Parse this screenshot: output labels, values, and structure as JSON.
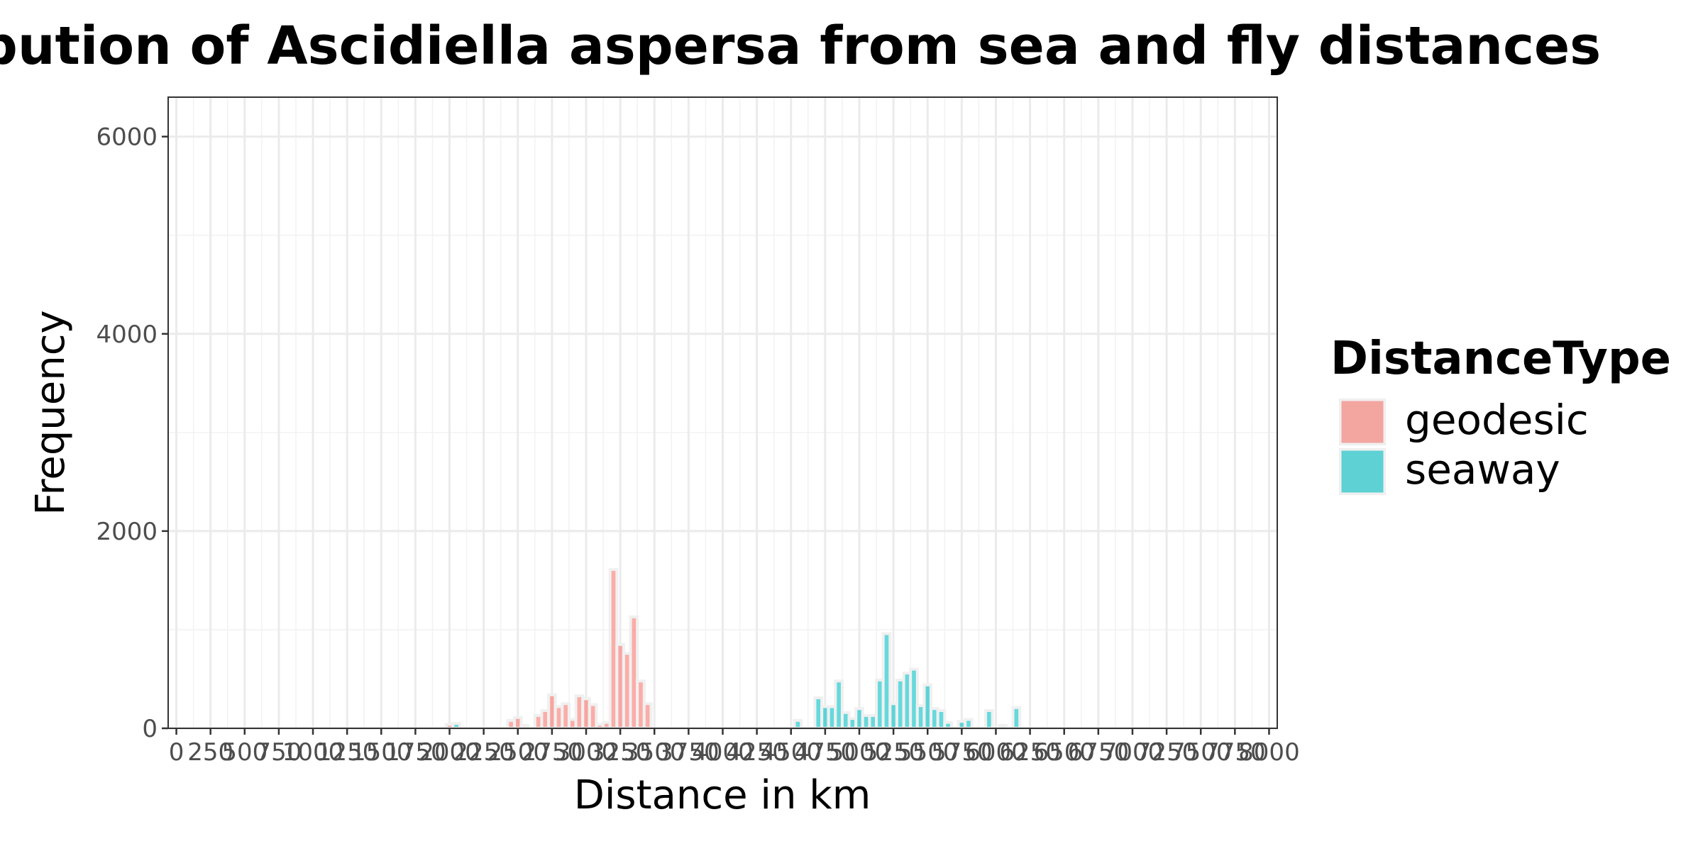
{
  "chart_data": {
    "type": "bar",
    "title": "Distribution of Ascidiella aspersa from sea and fly distances",
    "xlabel": "Distance in km",
    "ylabel": "Frequency",
    "xlim": [
      -60,
      8060
    ],
    "ylim": [
      0,
      6400
    ],
    "x_ticks": [
      "0",
      "250",
      "500",
      "750",
      "1000",
      "1250",
      "1500",
      "1750",
      "2000",
      "2250",
      "2500",
      "2750",
      "3000",
      "3250",
      "3500",
      "3750",
      "4000",
      "4250",
      "4500",
      "4750",
      "5000",
      "5250",
      "5500",
      "5750",
      "6000",
      "6250",
      "6500",
      "6750",
      "7000",
      "7250",
      "7500",
      "7750",
      "8000"
    ],
    "y_ticks": [
      "0",
      "2000",
      "4000",
      "6000"
    ],
    "grid": true,
    "bin_width": 50,
    "legend": {
      "title": "DistanceType",
      "position": "right",
      "entries": [
        "geodesic",
        "seaway"
      ]
    },
    "series": [
      {
        "name": "geodesic",
        "color": "#F8766D",
        "bars": [
          {
            "x": 2000,
            "y": 40
          },
          {
            "x": 2450,
            "y": 80
          },
          {
            "x": 2500,
            "y": 110
          },
          {
            "x": 2550,
            "y": 30
          },
          {
            "x": 2650,
            "y": 130
          },
          {
            "x": 2700,
            "y": 180
          },
          {
            "x": 2750,
            "y": 340
          },
          {
            "x": 2800,
            "y": 220
          },
          {
            "x": 2850,
            "y": 250
          },
          {
            "x": 2900,
            "y": 90
          },
          {
            "x": 2950,
            "y": 330
          },
          {
            "x": 3000,
            "y": 300
          },
          {
            "x": 3050,
            "y": 240
          },
          {
            "x": 3100,
            "y": 40
          },
          {
            "x": 3150,
            "y": 60
          },
          {
            "x": 3200,
            "y": 1610
          },
          {
            "x": 3250,
            "y": 850
          },
          {
            "x": 3300,
            "y": 760
          },
          {
            "x": 3350,
            "y": 1130
          },
          {
            "x": 3400,
            "y": 480
          },
          {
            "x": 3450,
            "y": 250
          }
        ]
      },
      {
        "name": "seaway",
        "color": "#00BFC4",
        "bars": [
          {
            "x": 2050,
            "y": 50
          },
          {
            "x": 4550,
            "y": 80
          },
          {
            "x": 4700,
            "y": 310
          },
          {
            "x": 4750,
            "y": 220
          },
          {
            "x": 4800,
            "y": 220
          },
          {
            "x": 4850,
            "y": 480
          },
          {
            "x": 4900,
            "y": 160
          },
          {
            "x": 4950,
            "y": 100
          },
          {
            "x": 5000,
            "y": 200
          },
          {
            "x": 5050,
            "y": 130
          },
          {
            "x": 5100,
            "y": 130
          },
          {
            "x": 5150,
            "y": 490
          },
          {
            "x": 5200,
            "y": 960
          },
          {
            "x": 5250,
            "y": 250
          },
          {
            "x": 5300,
            "y": 490
          },
          {
            "x": 5350,
            "y": 560
          },
          {
            "x": 5400,
            "y": 600
          },
          {
            "x": 5450,
            "y": 230
          },
          {
            "x": 5500,
            "y": 440
          },
          {
            "x": 5550,
            "y": 200
          },
          {
            "x": 5600,
            "y": 180
          },
          {
            "x": 5650,
            "y": 60
          },
          {
            "x": 5750,
            "y": 70
          },
          {
            "x": 5800,
            "y": 90
          },
          {
            "x": 5950,
            "y": 180
          },
          {
            "x": 6050,
            "y": 30
          },
          {
            "x": 6150,
            "y": 210
          }
        ]
      }
    ]
  }
}
